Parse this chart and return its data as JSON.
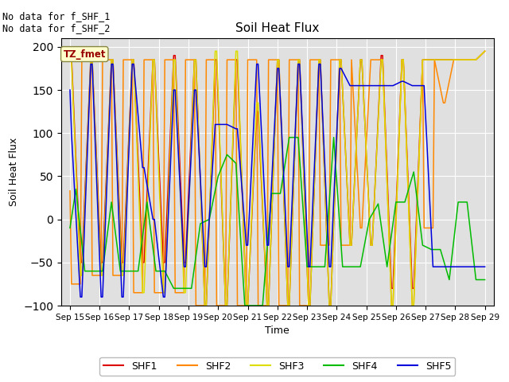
{
  "title": "Soil Heat Flux",
  "xlabel": "Time",
  "ylabel": "Soil Heat Flux",
  "ylim": [
    -100,
    210
  ],
  "yticks": [
    -100,
    -50,
    0,
    50,
    100,
    150,
    200
  ],
  "annotation_text": "No data for f_SHF_1\nNo data for f_SHF_2",
  "legend_label": "TZ_fmet",
  "legend_box_color": "#ffffcc",
  "legend_box_edge": "#888844",
  "background_color": "#e0e0e0",
  "series": {
    "SHF1": {
      "color": "#dd0000",
      "x": [
        15.0,
        15.05,
        15.35,
        15.4,
        15.7,
        15.75,
        16.05,
        16.1,
        16.4,
        16.45,
        16.75,
        16.8,
        17.1,
        17.15,
        17.45,
        17.5,
        17.8,
        17.85,
        18.15,
        18.2,
        18.5,
        18.55,
        18.85,
        18.9,
        19.2,
        19.25,
        19.55,
        19.6,
        19.9,
        19.95,
        20.25,
        20.3,
        20.6,
        20.65,
        20.95,
        21.0,
        21.3,
        21.35,
        21.65,
        21.7,
        22.0,
        22.05,
        22.35,
        22.4,
        22.7,
        22.75,
        23.05,
        23.1,
        23.4,
        23.45,
        23.75,
        23.8,
        24.1,
        24.15,
        24.45,
        24.5,
        24.8,
        24.85,
        25.15,
        25.2,
        25.5,
        25.55,
        25.85,
        25.9,
        26.2,
        26.25,
        26.55,
        26.6,
        26.9,
        26.95,
        27.25,
        27.3,
        27.6,
        27.65,
        27.95,
        28.0,
        28.3,
        28.35,
        28.65,
        28.7,
        29.0
      ],
      "y": [
        190,
        190,
        -50,
        -50,
        185,
        185,
        -50,
        -50,
        185,
        185,
        -50,
        -50,
        185,
        185,
        -50,
        -50,
        185,
        185,
        -50,
        -50,
        190,
        190,
        -50,
        -50,
        185,
        185,
        -100,
        -100,
        185,
        185,
        -100,
        -100,
        185,
        185,
        -100,
        -100,
        125,
        125,
        -100,
        -100,
        185,
        185,
        -100,
        -100,
        185,
        185,
        -100,
        -100,
        185,
        185,
        -100,
        -100,
        185,
        185,
        -30,
        -30,
        185,
        185,
        -30,
        -30,
        190,
        190,
        -80,
        -80,
        185,
        185,
        -80,
        -80,
        185,
        185,
        185,
        185,
        185,
        185,
        185,
        185,
        185,
        185,
        185,
        185,
        195
      ]
    },
    "SHF2": {
      "color": "#ff8800",
      "x": [
        15.0,
        15.05,
        15.35,
        15.4,
        15.7,
        15.75,
        16.05,
        16.1,
        16.4,
        16.45,
        16.75,
        16.8,
        17.1,
        17.15,
        17.45,
        17.5,
        17.8,
        17.85,
        18.15,
        18.2,
        18.5,
        18.55,
        18.85,
        18.9,
        19.2,
        19.25,
        19.55,
        19.6,
        19.9,
        19.95,
        20.25,
        20.3,
        20.6,
        20.65,
        20.95,
        21.0,
        21.3,
        21.35,
        21.65,
        21.7,
        22.0,
        22.05,
        22.35,
        22.4,
        22.7,
        22.75,
        23.05,
        23.1,
        23.4,
        23.45,
        23.75,
        23.8,
        24.1,
        24.15,
        24.45,
        24.5,
        24.8,
        24.85,
        25.15,
        25.2,
        25.5,
        25.55,
        25.85,
        25.9,
        26.2,
        26.25,
        26.55,
        26.6,
        26.9,
        26.95,
        27.25,
        27.3,
        27.6,
        27.65,
        27.95,
        28.0,
        28.3,
        28.35,
        28.65,
        28.7,
        29.0
      ],
      "y": [
        33,
        -75,
        -75,
        185,
        185,
        -65,
        -65,
        185,
        185,
        -65,
        -65,
        185,
        185,
        -85,
        -85,
        185,
        185,
        -85,
        -85,
        185,
        185,
        -85,
        -85,
        185,
        185,
        -100,
        -100,
        185,
        185,
        -100,
        -100,
        185,
        185,
        -100,
        -100,
        185,
        185,
        -100,
        -100,
        185,
        185,
        -100,
        -100,
        185,
        185,
        -100,
        -100,
        185,
        185,
        -30,
        -30,
        185,
        185,
        -30,
        -30,
        185,
        -10,
        -10,
        185,
        185,
        185,
        185,
        -100,
        -100,
        185,
        185,
        -100,
        -100,
        185,
        -10,
        -10,
        185,
        135,
        135,
        185,
        185,
        185,
        185,
        185,
        185,
        195
      ]
    },
    "SHF3": {
      "color": "#dddd00",
      "x": [
        15.0,
        15.05,
        15.35,
        15.4,
        15.7,
        15.75,
        16.05,
        16.1,
        16.4,
        16.45,
        16.75,
        16.8,
        17.1,
        17.15,
        17.45,
        17.5,
        17.8,
        17.85,
        18.15,
        18.2,
        18.5,
        18.55,
        18.85,
        18.9,
        19.2,
        19.25,
        19.55,
        19.6,
        19.9,
        19.95,
        20.25,
        20.3,
        20.6,
        20.65,
        20.95,
        21.0,
        21.3,
        21.35,
        21.65,
        21.7,
        22.0,
        22.05,
        22.35,
        22.4,
        22.7,
        22.75,
        23.05,
        23.1,
        23.4,
        23.45,
        23.75,
        23.8,
        24.1,
        24.15,
        24.45,
        24.5,
        24.8,
        24.85,
        25.15,
        25.2,
        25.5,
        25.55,
        25.85,
        25.9,
        26.2,
        26.25,
        26.55,
        26.6,
        26.9,
        26.95,
        27.25,
        27.3,
        27.6,
        27.65,
        27.95,
        28.0,
        28.3,
        28.35,
        28.65,
        28.7,
        29.0
      ],
      "y": [
        185,
        185,
        -65,
        -65,
        185,
        185,
        -65,
        -65,
        185,
        185,
        -65,
        -65,
        185,
        185,
        -85,
        -85,
        185,
        185,
        -85,
        -85,
        185,
        185,
        -85,
        -85,
        185,
        185,
        -100,
        -100,
        195,
        195,
        -100,
        -100,
        195,
        195,
        -100,
        -100,
        135,
        135,
        -100,
        -100,
        185,
        185,
        -100,
        -100,
        185,
        185,
        -100,
        -100,
        185,
        185,
        -100,
        -100,
        185,
        185,
        -30,
        -30,
        185,
        185,
        -30,
        -30,
        185,
        185,
        -100,
        -100,
        185,
        185,
        -100,
        -100,
        185,
        185,
        185,
        185,
        185,
        185,
        185,
        185,
        185,
        185,
        185,
        185,
        195
      ]
    },
    "SHF4": {
      "color": "#00bb00",
      "x": [
        15.0,
        15.2,
        15.5,
        15.8,
        16.1,
        16.4,
        16.7,
        17.0,
        17.3,
        17.6,
        17.9,
        18.2,
        18.5,
        18.8,
        19.1,
        19.4,
        19.7,
        20.0,
        20.3,
        20.6,
        20.9,
        21.2,
        21.5,
        21.8,
        22.1,
        22.4,
        22.7,
        23.0,
        23.3,
        23.6,
        23.9,
        24.2,
        24.5,
        24.8,
        25.1,
        25.4,
        25.7,
        26.0,
        26.3,
        26.6,
        26.9,
        27.2,
        27.5,
        27.8,
        28.1,
        28.4,
        28.7,
        29.0
      ],
      "y": [
        -10,
        35,
        -60,
        -60,
        -60,
        20,
        -60,
        -60,
        -60,
        20,
        -60,
        -60,
        -80,
        -80,
        -80,
        -5,
        0,
        50,
        75,
        65,
        -100,
        -100,
        -100,
        30,
        30,
        95,
        95,
        -55,
        -55,
        -55,
        95,
        -55,
        -55,
        -55,
        0,
        18,
        -55,
        20,
        20,
        55,
        -30,
        -35,
        -35,
        -70,
        20,
        20,
        -70,
        -70
      ]
    },
    "SHF5": {
      "color": "#0000dd",
      "x": [
        15.0,
        15.05,
        15.35,
        15.4,
        15.7,
        15.75,
        16.05,
        16.1,
        16.4,
        16.45,
        16.75,
        16.8,
        17.1,
        17.15,
        17.45,
        17.5,
        17.8,
        17.85,
        18.15,
        18.2,
        18.5,
        18.55,
        18.85,
        18.9,
        19.2,
        19.25,
        19.55,
        19.6,
        19.9,
        19.95,
        20.25,
        20.3,
        20.6,
        20.65,
        20.95,
        21.0,
        21.3,
        21.35,
        21.65,
        21.7,
        22.0,
        22.05,
        22.35,
        22.4,
        22.7,
        22.75,
        23.05,
        23.1,
        23.4,
        23.45,
        23.75,
        23.8,
        24.1,
        24.15,
        24.45,
        24.5,
        24.8,
        24.85,
        25.15,
        25.2,
        25.5,
        25.55,
        25.85,
        25.9,
        26.2,
        26.25,
        26.55,
        26.6,
        26.9,
        26.95,
        27.25,
        27.3,
        27.6,
        27.65,
        27.95,
        28.0,
        28.3,
        28.35,
        28.65,
        28.7,
        29.0
      ],
      "y": [
        150,
        100,
        -90,
        -90,
        180,
        180,
        -90,
        -90,
        180,
        180,
        -90,
        -90,
        180,
        180,
        60,
        60,
        0,
        0,
        -90,
        -90,
        150,
        150,
        -55,
        -55,
        150,
        150,
        -55,
        -55,
        110,
        110,
        110,
        110,
        105,
        105,
        -30,
        -30,
        180,
        180,
        -30,
        -30,
        175,
        175,
        -55,
        -55,
        180,
        180,
        -55,
        -55,
        180,
        180,
        -55,
        -55,
        175,
        175,
        155,
        155,
        155,
        155,
        155,
        155,
        155,
        155,
        155,
        155,
        160,
        160,
        155,
        155,
        155,
        155,
        -55,
        -55,
        -55,
        -55,
        -55,
        -55,
        -55,
        -55,
        -55,
        -55,
        -55
      ]
    }
  },
  "xticks": [
    15,
    16,
    17,
    18,
    19,
    20,
    21,
    22,
    23,
    24,
    25,
    26,
    27,
    28,
    29
  ],
  "xtick_labels": [
    "Sep 15",
    "Sep 16",
    "Sep 17",
    "Sep 18",
    "Sep 19",
    "Sep 20",
    "Sep 21",
    "Sep 22",
    "Sep 23",
    "Sep 24",
    "Sep 25",
    "Sep 26",
    "Sep 27",
    "Sep 28",
    "Sep 29"
  ],
  "legend_entries": [
    {
      "label": "SHF1",
      "color": "#dd0000"
    },
    {
      "label": "SHF2",
      "color": "#ff8800"
    },
    {
      "label": "SHF3",
      "color": "#dddd00"
    },
    {
      "label": "SHF4",
      "color": "#00bb00"
    },
    {
      "label": "SHF5",
      "color": "#0000dd"
    }
  ]
}
